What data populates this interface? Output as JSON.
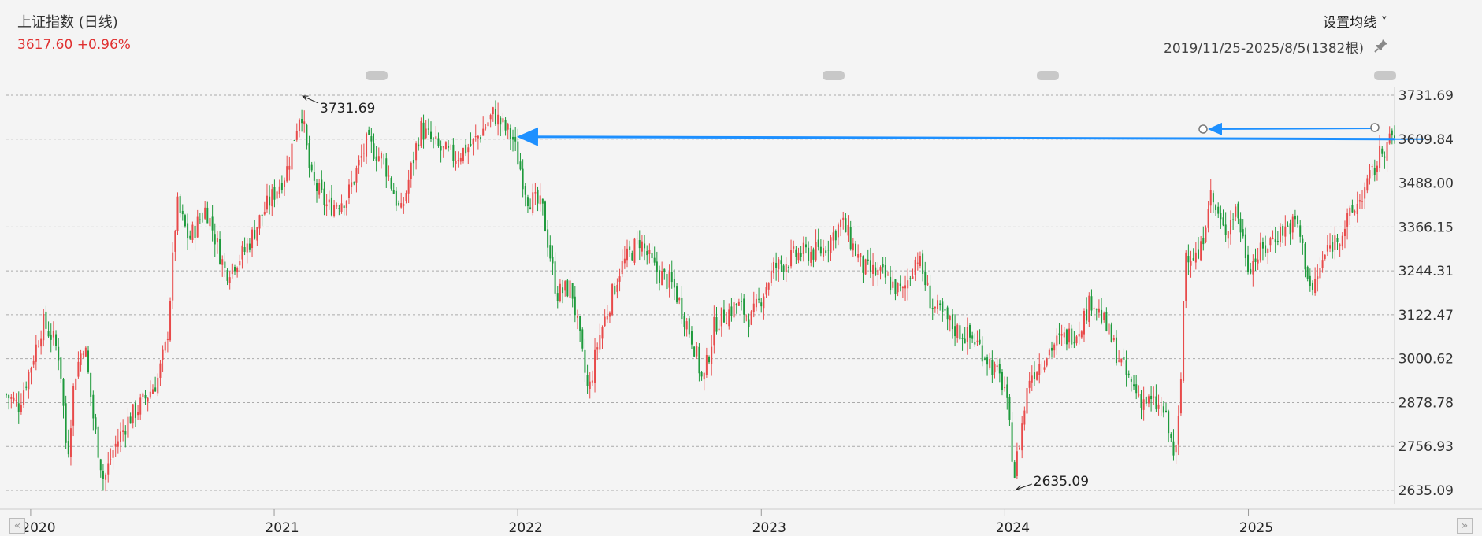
{
  "header": {
    "title": "上证指数 (日线)",
    "price_line": "3617.60 +0.96%",
    "set_ma_label": "设置均线 ˅",
    "date_range": "2019/11/25-2025/8/5(1382根)"
  },
  "colors": {
    "up": "#e84a4a",
    "down": "#1e9a3c",
    "arrow": "#1e90ff",
    "grid": "#aaaaaa",
    "bg": "#f4f4f4"
  },
  "icons": {
    "pin": "pin-icon",
    "nav_left": "double-chevron-left-icon",
    "nav_right": "double-chevron-right-icon"
  },
  "chart_data": {
    "type": "candlestick",
    "title": "上证指数 (日线)",
    "y_ticks": [
      "3731.69",
      "3609.84",
      "3488.00",
      "3366.15",
      "3244.31",
      "3122.47",
      "3000.62",
      "2878.78",
      "2756.93",
      "2635.09"
    ],
    "ylim": [
      2635.09,
      3731.69
    ],
    "x_ticks": [
      "2020",
      "2021",
      "2022",
      "2023",
      "2024",
      "2025"
    ],
    "x_tick_values": [
      2020.0,
      2021.0,
      2022.0,
      2023.0,
      2024.0,
      2025.0
    ],
    "xlim": [
      2019.9,
      2025.6
    ],
    "grid": true,
    "annotations": [
      {
        "label": "3731.69",
        "x": 2021.11,
        "y": 3731.69
      },
      {
        "label": "2635.09",
        "x": 2024.04,
        "y": 2635.09
      }
    ],
    "horizontal_arrow": {
      "from_x": 2025.6,
      "to_x": 2021.98,
      "y": 3610
    },
    "price_line_close": 3617.6,
    "series_path": [
      [
        2019.9,
        2900
      ],
      [
        2019.95,
        2870
      ],
      [
        2020.0,
        2980
      ],
      [
        2020.05,
        3100
      ],
      [
        2020.09,
        3060
      ],
      [
        2020.12,
        3000
      ],
      [
        2020.15,
        2720
      ],
      [
        2020.18,
        2950
      ],
      [
        2020.22,
        3050
      ],
      [
        2020.26,
        2820
      ],
      [
        2020.3,
        2660
      ],
      [
        2020.34,
        2750
      ],
      [
        2020.4,
        2830
      ],
      [
        2020.46,
        2880
      ],
      [
        2020.52,
        2940
      ],
      [
        2020.56,
        3050
      ],
      [
        2020.6,
        3430
      ],
      [
        2020.65,
        3330
      ],
      [
        2020.72,
        3420
      ],
      [
        2020.8,
        3240
      ],
      [
        2020.88,
        3300
      ],
      [
        2020.95,
        3400
      ],
      [
        2021.05,
        3520
      ],
      [
        2021.11,
        3700
      ],
      [
        2021.15,
        3500
      ],
      [
        2021.22,
        3420
      ],
      [
        2021.3,
        3450
      ],
      [
        2021.38,
        3600
      ],
      [
        2021.45,
        3550
      ],
      [
        2021.52,
        3400
      ],
      [
        2021.6,
        3640
      ],
      [
        2021.68,
        3580
      ],
      [
        2021.74,
        3560
      ],
      [
        2021.82,
        3600
      ],
      [
        2021.9,
        3680
      ],
      [
        2021.98,
        3610
      ],
      [
        2022.04,
        3450
      ],
      [
        2022.1,
        3420
      ],
      [
        2022.16,
        3180
      ],
      [
        2022.22,
        3200
      ],
      [
        2022.29,
        2900
      ],
      [
        2022.33,
        3050
      ],
      [
        2022.42,
        3250
      ],
      [
        2022.5,
        3330
      ],
      [
        2022.56,
        3250
      ],
      [
        2022.64,
        3200
      ],
      [
        2022.72,
        3050
      ],
      [
        2022.76,
        2930
      ],
      [
        2022.81,
        3100
      ],
      [
        2022.9,
        3150
      ],
      [
        2022.96,
        3110
      ],
      [
        2023.05,
        3250
      ],
      [
        2023.15,
        3290
      ],
      [
        2023.25,
        3300
      ],
      [
        2023.33,
        3380
      ],
      [
        2023.42,
        3250
      ],
      [
        2023.5,
        3230
      ],
      [
        2023.58,
        3180
      ],
      [
        2023.64,
        3290
      ],
      [
        2023.7,
        3150
      ],
      [
        2023.8,
        3080
      ],
      [
        2023.88,
        3050
      ],
      [
        2023.93,
        3000
      ],
      [
        2024.0,
        2920
      ],
      [
        2024.04,
        2680
      ],
      [
        2024.1,
        2950
      ],
      [
        2024.2,
        3040
      ],
      [
        2024.3,
        3080
      ],
      [
        2024.36,
        3170
      ],
      [
        2024.42,
        3080
      ],
      [
        2024.5,
        2950
      ],
      [
        2024.56,
        2890
      ],
      [
        2024.65,
        2860
      ],
      [
        2024.7,
        2720
      ],
      [
        2024.72,
        2880
      ],
      [
        2024.74,
        3300
      ],
      [
        2024.8,
        3280
      ],
      [
        2024.84,
        3460
      ],
      [
        2024.9,
        3350
      ],
      [
        2024.95,
        3420
      ],
      [
        2025.0,
        3260
      ],
      [
        2025.06,
        3300
      ],
      [
        2025.12,
        3350
      ],
      [
        2025.2,
        3380
      ],
      [
        2025.26,
        3180
      ],
      [
        2025.32,
        3300
      ],
      [
        2025.38,
        3350
      ],
      [
        2025.44,
        3420
      ],
      [
        2025.5,
        3500
      ],
      [
        2025.55,
        3580
      ],
      [
        2025.6,
        3617.6
      ]
    ]
  }
}
